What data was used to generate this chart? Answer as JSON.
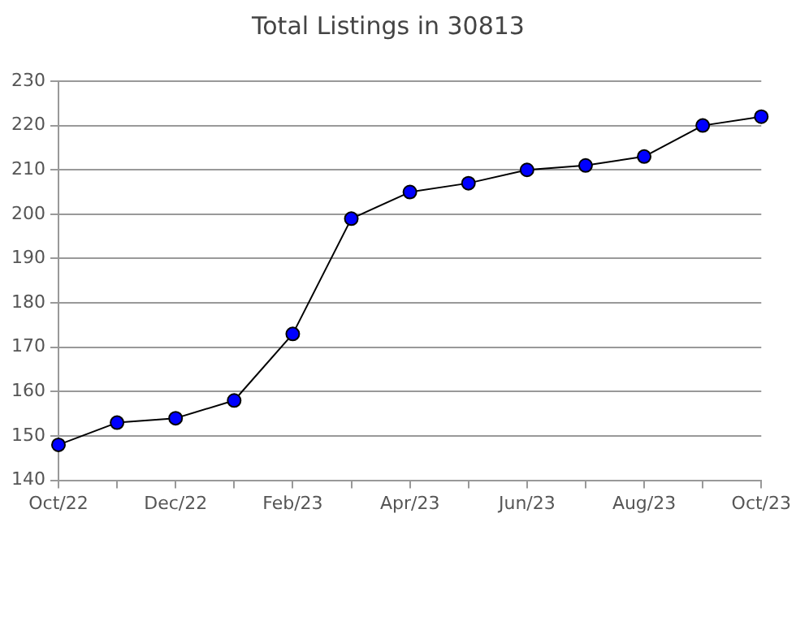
{
  "chart_data": {
    "type": "line",
    "title": "Total Listings in 30813",
    "categories": [
      "Oct/22",
      null,
      "Dec/22",
      null,
      "Feb/23",
      null,
      "Apr/23",
      null,
      "Jun/23",
      null,
      "Aug/23",
      null,
      "Oct/23"
    ],
    "series": [
      {
        "color": "#0000ff",
        "values": [
          148,
          153,
          154,
          158,
          173,
          199,
          205,
          207,
          210,
          211,
          213,
          220,
          222
        ]
      }
    ],
    "ylim": [
      140,
      230
    ],
    "yticks": [
      140,
      150,
      160,
      170,
      180,
      190,
      200,
      210,
      220,
      230
    ],
    "grid": "y",
    "legend": false,
    "marker": "circle",
    "line_style": "solid"
  }
}
